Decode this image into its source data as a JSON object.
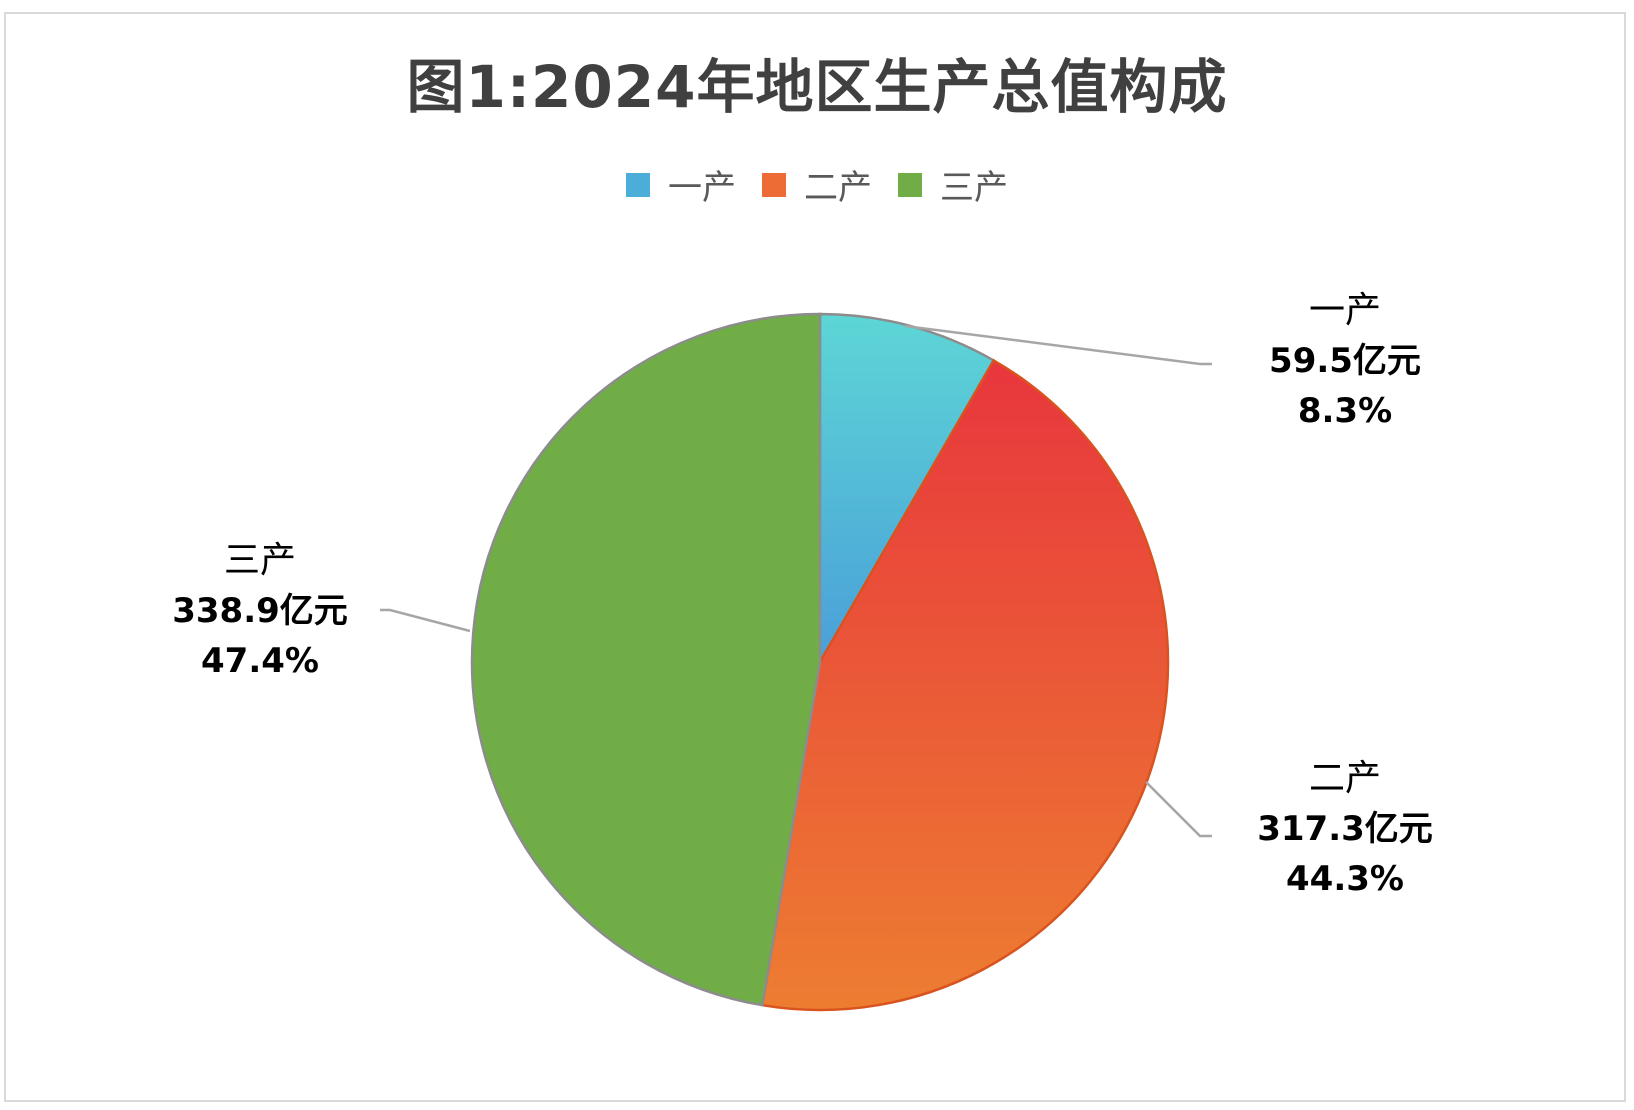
{
  "chart_data": {
    "type": "pie",
    "title": "图1:2024年地区生产总值构成",
    "legend_placement": "top",
    "categories": [
      "一产",
      "二产",
      "三产"
    ],
    "values": [
      59.5,
      317.3,
      338.9
    ],
    "value_labels": [
      "59.5亿元",
      "317.3亿元",
      "338.9亿元"
    ],
    "percent_labels": [
      "8.3%",
      "44.3%",
      "47.4%"
    ],
    "unit": "亿元",
    "colors": {
      "一产": [
        "#5dd6d6",
        "#4a9fd8"
      ],
      "二产": [
        "#e8363d",
        "#ed7d31"
      ],
      "三产": [
        "#70ad47",
        "#70ad47"
      ]
    },
    "legend_colors": [
      "#4aaed8",
      "#ed6b35",
      "#70ad47"
    ],
    "slice_border": "#8c8c8c"
  }
}
